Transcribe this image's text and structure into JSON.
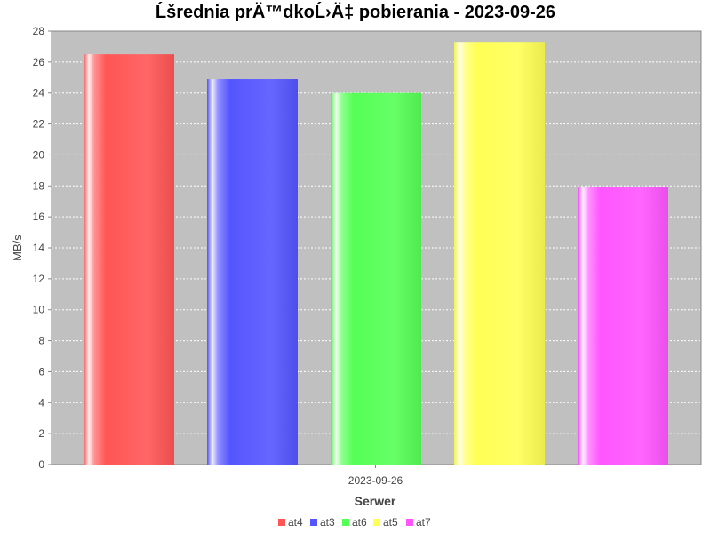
{
  "chart_data": {
    "type": "bar",
    "title": "Ĺšrednia prÄ™dkoĹ›Ä‡ pobierania - 2023-09-26",
    "xlabel": "Serwer",
    "ylabel": "MB/s",
    "categories": [
      "2023-09-26"
    ],
    "ylim": [
      0,
      28
    ],
    "yticks": [
      0,
      2,
      4,
      6,
      8,
      10,
      12,
      14,
      16,
      18,
      20,
      22,
      24,
      26,
      28
    ],
    "grid": true,
    "legend_position": "bottom",
    "series": [
      {
        "name": "at4",
        "values": [
          26.5
        ],
        "color": "#ff5555"
      },
      {
        "name": "at3",
        "values": [
          24.9
        ],
        "color": "#5555ff"
      },
      {
        "name": "at6",
        "values": [
          24.0
        ],
        "color": "#55ff55"
      },
      {
        "name": "at5",
        "values": [
          27.3
        ],
        "color": "#ffff55"
      },
      {
        "name": "at7",
        "values": [
          17.9
        ],
        "color": "#ff55ff"
      }
    ]
  }
}
